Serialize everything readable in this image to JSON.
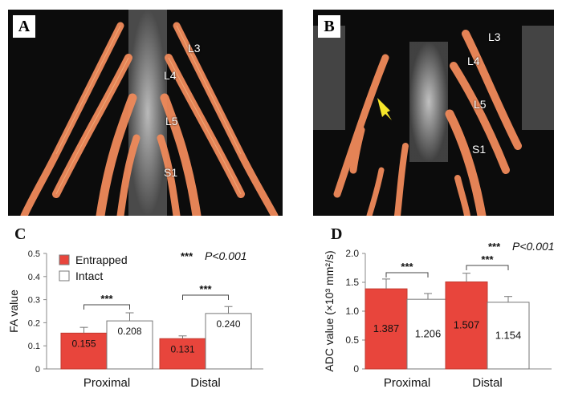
{
  "panels": {
    "a": {
      "letter": "A",
      "labels": [
        "L3",
        "L4",
        "L5",
        "S1"
      ]
    },
    "b": {
      "letter": "B",
      "labels": [
        "L3",
        "L4",
        "L5",
        "S1"
      ]
    },
    "c": {
      "letter": "C"
    },
    "d": {
      "letter": "D"
    }
  },
  "colors": {
    "entrapped": "#e8453c",
    "intact": "#ffffff",
    "nerve": "#f08a5a",
    "arrow": "#f5e62a"
  },
  "chart_data": [
    {
      "type": "bar",
      "categories": [
        "Proximal",
        "Distal"
      ],
      "series": [
        {
          "name": "Entrapped",
          "values": [
            0.155,
            0.131
          ],
          "labels": [
            "0.155",
            "0.131"
          ],
          "errors": [
            0.025,
            0.012
          ]
        },
        {
          "name": "Intact",
          "values": [
            0.208,
            0.24
          ],
          "labels": [
            "0.208",
            "0.240"
          ],
          "errors": [
            0.035,
            0.03
          ]
        }
      ],
      "ylabel": "FA value",
      "ylim": [
        0,
        0.5
      ],
      "yticks": [
        "0",
        "0.1",
        "0.2",
        "0.3",
        "0.4",
        "0.5"
      ],
      "significance": [
        "***",
        "***"
      ],
      "annotation": {
        "stars": "***",
        "p": "P<0.001"
      },
      "legend_placement": "top-left",
      "grid": false
    },
    {
      "type": "bar",
      "categories": [
        "Proximal",
        "Distal"
      ],
      "series": [
        {
          "name": "Entrapped",
          "values": [
            1.387,
            1.507
          ],
          "labels": [
            "1.387",
            "1.507"
          ],
          "errors": [
            0.17,
            0.15
          ]
        },
        {
          "name": "Intact",
          "values": [
            1.206,
            1.154
          ],
          "labels": [
            "1.206",
            "1.154"
          ],
          "errors": [
            0.1,
            0.1
          ]
        }
      ],
      "ylabel": "ADC value (×10³ mm²/s)",
      "ylim": [
        0,
        2.0
      ],
      "yticks": [
        "0",
        "0.5",
        "1.0",
        "1.5",
        "2.0"
      ],
      "significance": [
        "***",
        "***"
      ],
      "annotation": {
        "stars": "***",
        "p": "P<0.001"
      },
      "grid": false
    }
  ]
}
